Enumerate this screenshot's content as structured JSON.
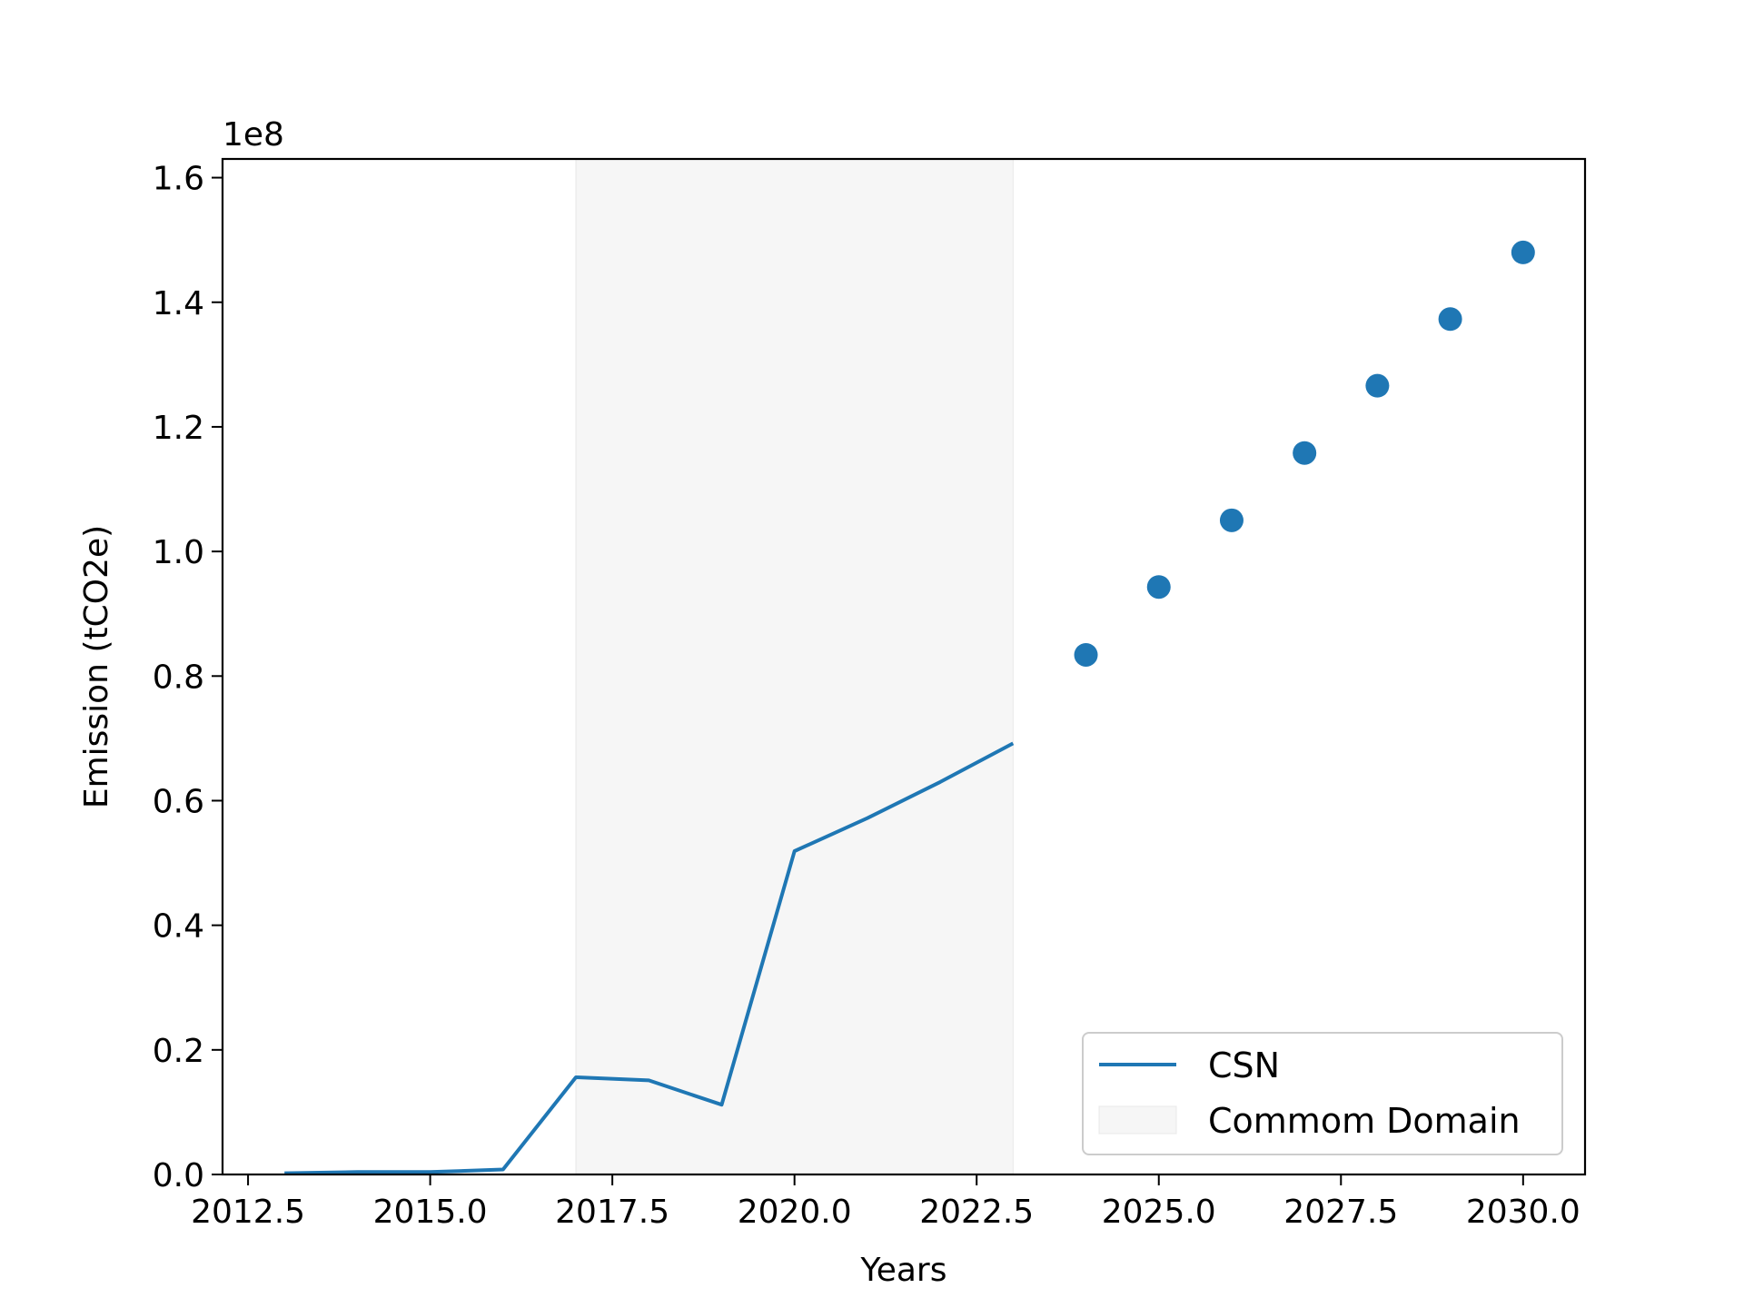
{
  "chart_data": {
    "type": "line",
    "title": "",
    "xlabel": "Years",
    "ylabel": "Emission (tCO2e)",
    "y_scale_label": "1e8",
    "y_multiplier": 100000000,
    "xlim": [
      2012.15,
      2030.85
    ],
    "ylim": [
      0,
      1.63
    ],
    "xticks": [
      2012.5,
      2015.0,
      2017.5,
      2020.0,
      2022.5,
      2025.0,
      2027.5,
      2030.0
    ],
    "xtick_labels": [
      "2012.5",
      "2015.0",
      "2017.5",
      "2020.0",
      "2022.5",
      "2025.0",
      "2027.5",
      "2030.0"
    ],
    "yticks": [
      0,
      0.2,
      0.4,
      0.6,
      0.8,
      1.0,
      1.2,
      1.4,
      1.6
    ],
    "ytick_labels": [
      "0.0",
      "0.2",
      "0.4",
      "0.6",
      "0.8",
      "1.0",
      "1.2",
      "1.4",
      "1.6"
    ],
    "grid": false,
    "legend_position": "lower-right",
    "shaded_region": {
      "name": "Commom Domain",
      "x_start": 2017,
      "x_end": 2023,
      "color": "#f0f0f0"
    },
    "series": [
      {
        "name": "CSN",
        "kind": "line",
        "color": "#1f77b4",
        "x": [
          2013,
          2014,
          2015,
          2016,
          2017,
          2018,
          2019,
          2020,
          2021,
          2022,
          2023
        ],
        "y": [
          0.002,
          0.004,
          0.004,
          0.008,
          0.156,
          0.151,
          0.112,
          0.519,
          0.572,
          0.63,
          0.692
        ]
      },
      {
        "kind": "scatter",
        "color": "#1f77b4",
        "x": [
          2024,
          2025,
          2026,
          2027,
          2028,
          2029,
          2030
        ],
        "y": [
          0.834,
          0.943,
          1.05,
          1.158,
          1.266,
          1.373,
          1.48
        ]
      }
    ]
  }
}
